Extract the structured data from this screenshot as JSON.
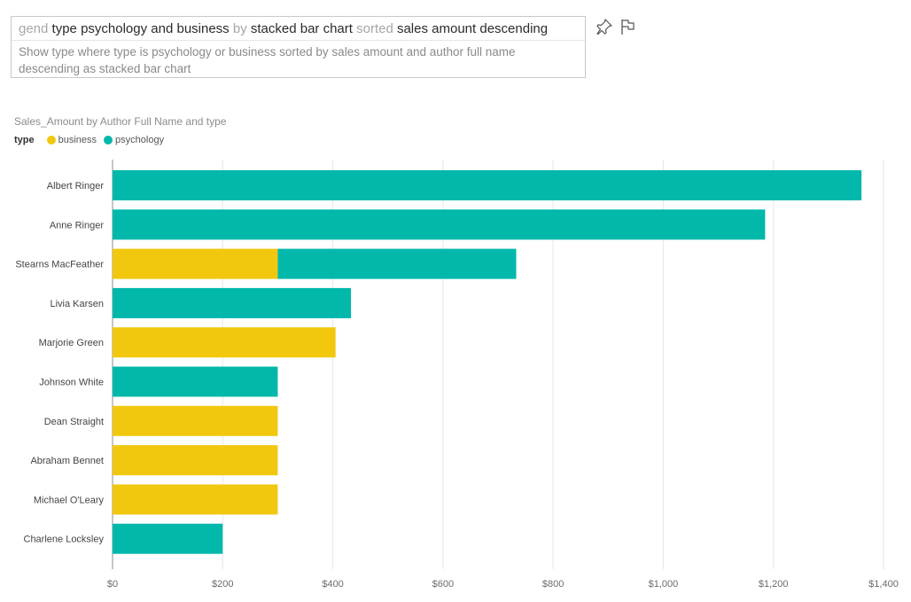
{
  "qa": {
    "query_segments": [
      {
        "text": "gend ",
        "kind": "conn"
      },
      {
        "text": "type psychology and business",
        "kind": "kw"
      },
      {
        "text": " by ",
        "kind": "conn"
      },
      {
        "text": "stacked bar chart",
        "kind": "kw"
      },
      {
        "text": " sorted ",
        "kind": "conn"
      },
      {
        "text": "sales amount descending",
        "kind": "kw"
      }
    ],
    "suggestion": "Show type where type is psychology or business sorted by sales amount and author full name descending as stacked bar chart"
  },
  "toolbar": {
    "pin_icon": "pin-icon",
    "flag_icon": "flag-icon"
  },
  "colors": {
    "business": "#F2C80F",
    "psychology": "#01B8AA",
    "gridline": "#e6e6e6",
    "axis": "#8c8c8c"
  },
  "chart_data": {
    "type": "bar",
    "orientation": "horizontal",
    "stacked": true,
    "title": "Sales_Amount by Author Full Name and type",
    "legend_title": "type",
    "legend_position": "top-left",
    "categories": [
      "Albert Ringer",
      "Anne Ringer",
      "Stearns MacFeather",
      "Livia Karsen",
      "Marjorie Green",
      "Johnson White",
      "Dean Straight",
      "Abraham Bennet",
      "Michael O'Leary",
      "Charlene Locksley"
    ],
    "series": [
      {
        "name": "business",
        "values": [
          0,
          0,
          300,
          0,
          405,
          0,
          300,
          300,
          300,
          0
        ]
      },
      {
        "name": "psychology",
        "values": [
          1360,
          1185,
          433,
          433,
          0,
          300,
          0,
          0,
          0,
          200
        ]
      }
    ],
    "xlim": [
      0,
      1400
    ],
    "x_ticks": [
      0,
      200,
      400,
      600,
      800,
      1000,
      1200,
      1400
    ],
    "x_tick_labels": [
      "$0",
      "$200",
      "$400",
      "$600",
      "$800",
      "$1,000",
      "$1,200",
      "$1,400"
    ],
    "grid": true
  }
}
